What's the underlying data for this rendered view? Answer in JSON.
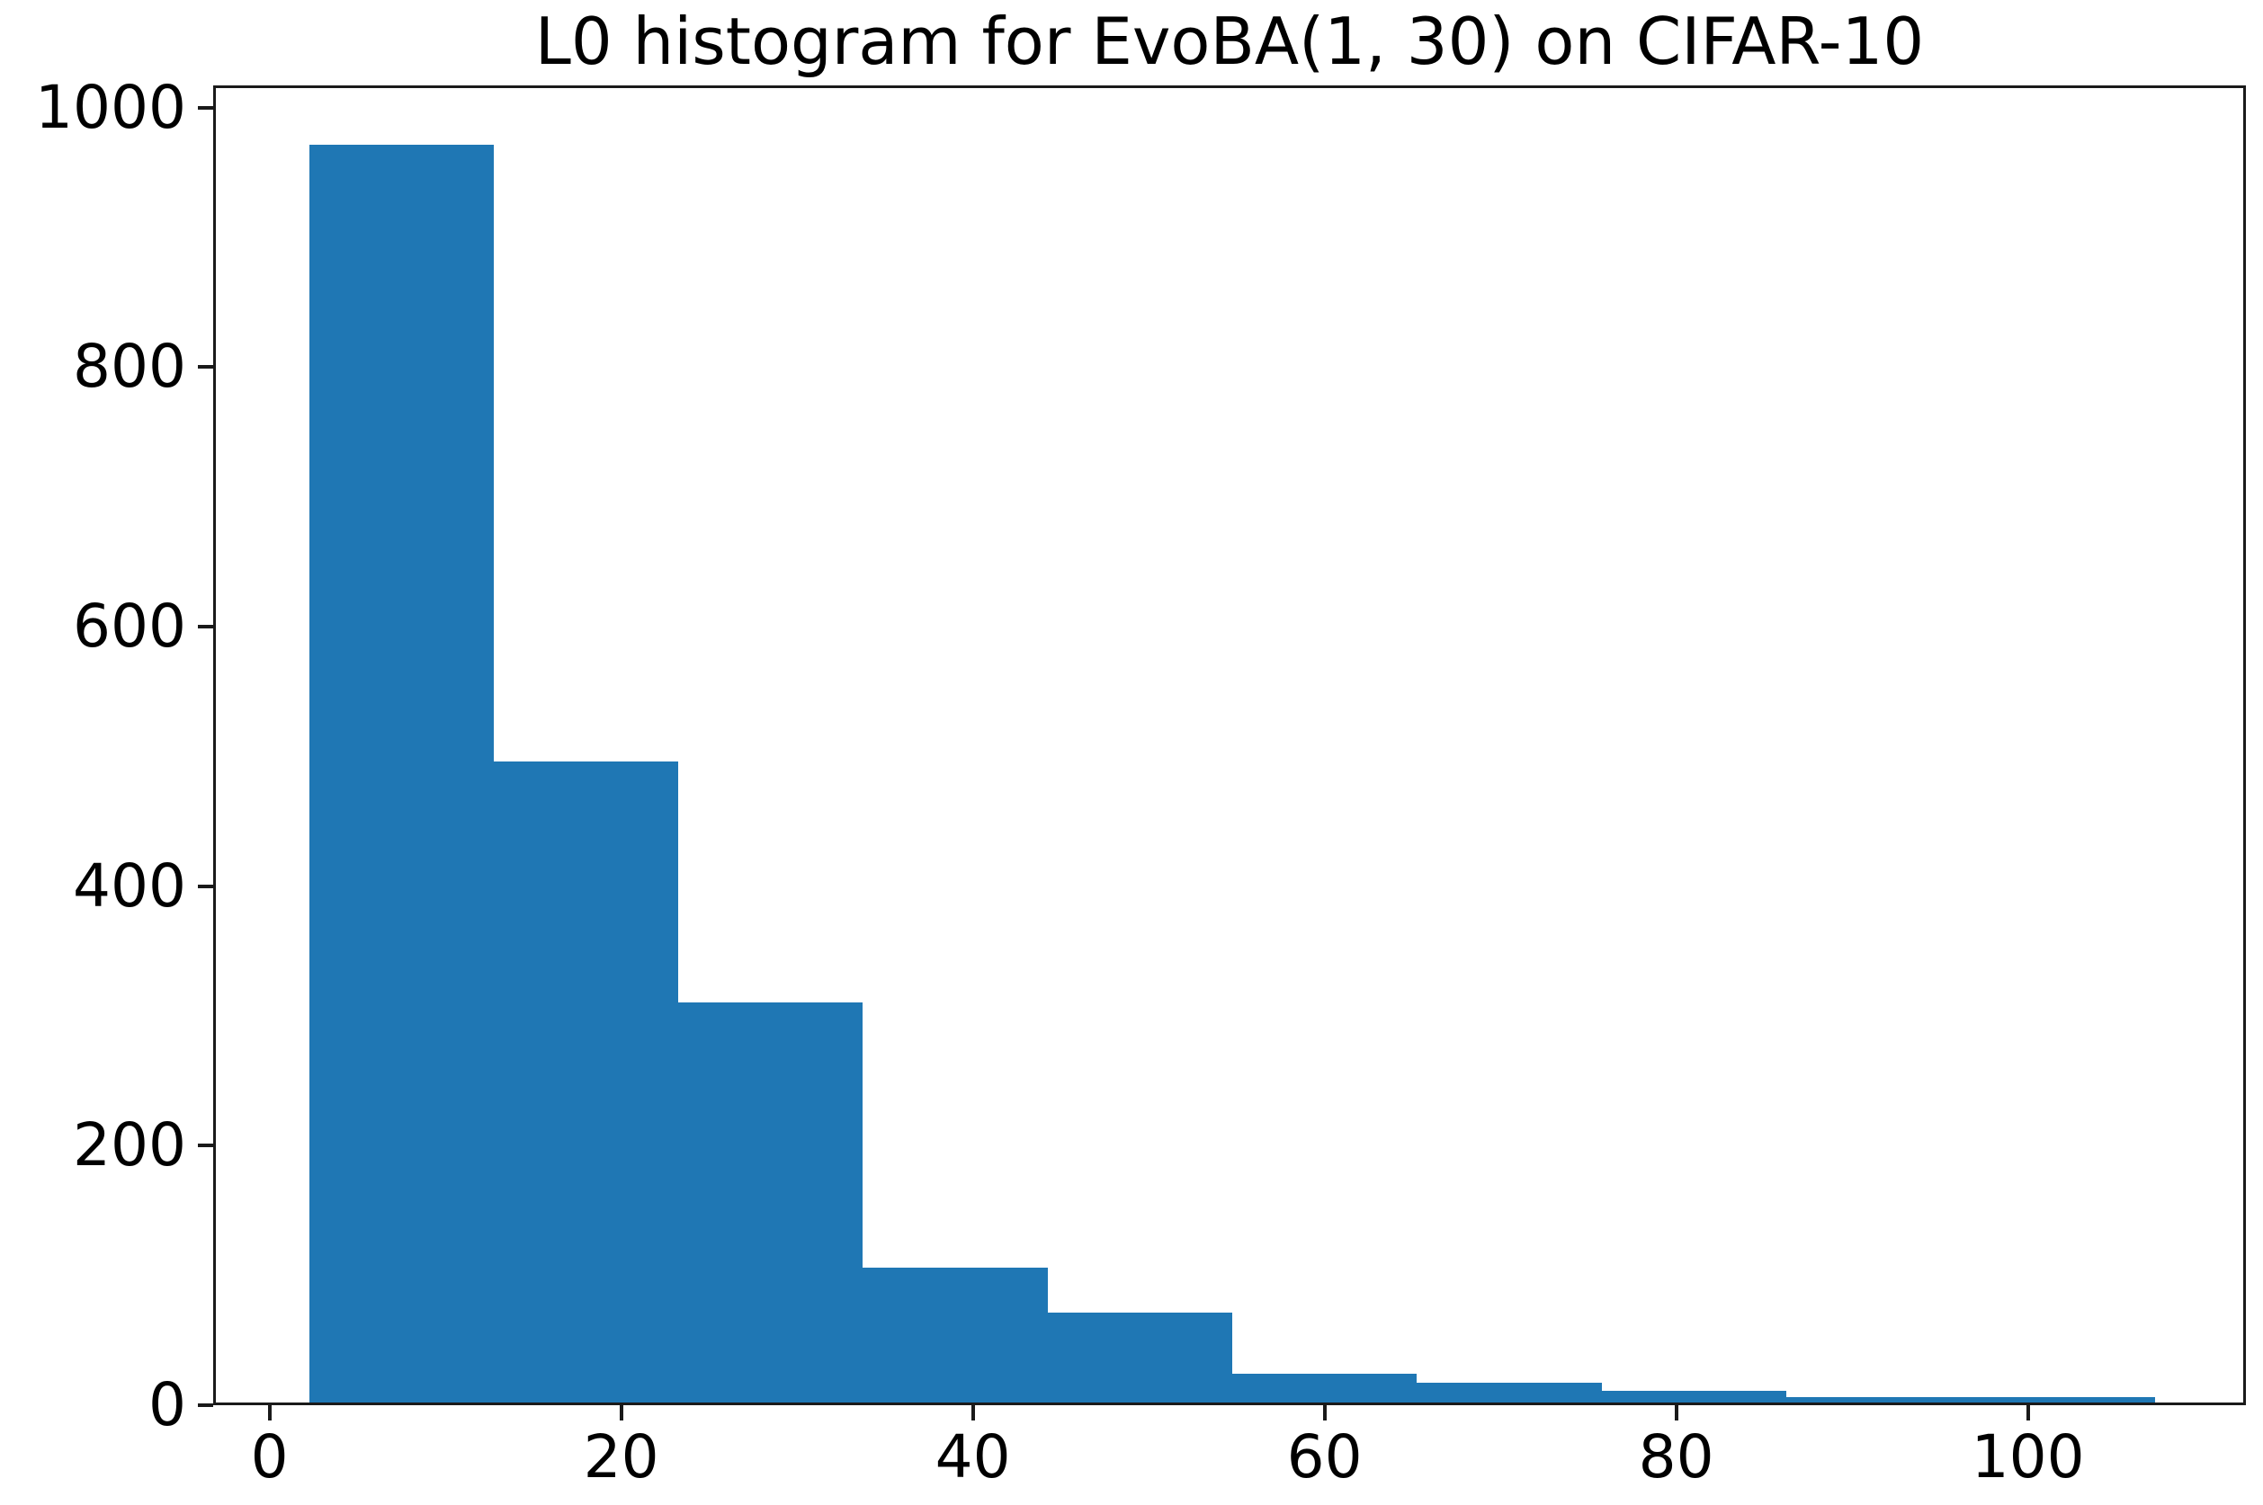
{
  "title": "L0 histogram for EvoBA(1, 30) on CIFAR-10",
  "chart_data": {
    "type": "bar",
    "subtype": "histogram",
    "title": "L0 histogram for EvoBA(1, 30) on CIFAR-10",
    "xlabel": "",
    "ylabel": "",
    "bin_edges": [
      2.1,
      12.6,
      23.1,
      33.6,
      44.1,
      54.6,
      65.1,
      75.6,
      86.1,
      96.6,
      107.1
    ],
    "counts": [
      969,
      494,
      308,
      104,
      69,
      22,
      15,
      9,
      4,
      4
    ],
    "x_ticks": [
      "0",
      "20",
      "40",
      "60",
      "80",
      "100"
    ],
    "x_tick_values": [
      0,
      20,
      40,
      60,
      80,
      100
    ],
    "y_ticks": [
      "0",
      "200",
      "400",
      "600",
      "800",
      "1000"
    ],
    "y_tick_values": [
      0,
      200,
      400,
      600,
      800,
      1000
    ],
    "xlim": [
      -3.2,
      112.4
    ],
    "ylim": [
      0,
      1017
    ],
    "grid": false,
    "legend": null,
    "bar_color": "#1f77b4",
    "axis_color": "#1a1a1a",
    "text_color": "#000000"
  }
}
